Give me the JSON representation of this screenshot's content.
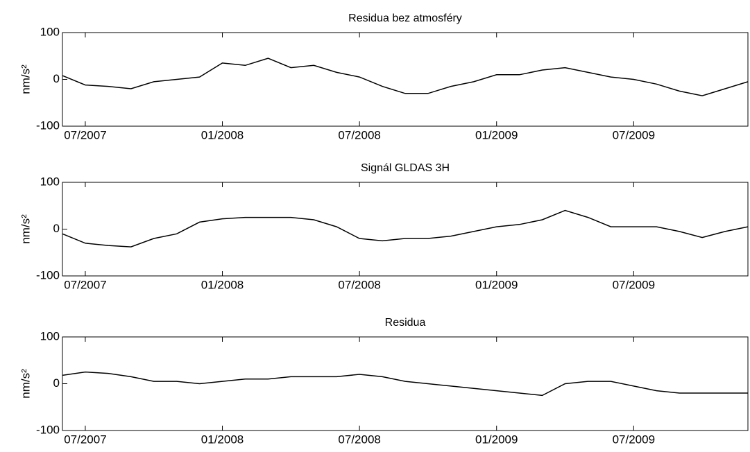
{
  "chart_data": [
    {
      "type": "line",
      "title": "Residua bez atmosféry",
      "ylabel": "nm/s²",
      "color": "#000000",
      "x": [
        "2007-06",
        "2007-07",
        "2007-08",
        "2007-09",
        "2007-10",
        "2007-11",
        "2007-12",
        "2008-01",
        "2008-02",
        "2008-03",
        "2008-04",
        "2008-05",
        "2008-06",
        "2008-07",
        "2008-08",
        "2008-09",
        "2008-10",
        "2008-11",
        "2008-12",
        "2009-01",
        "2009-02",
        "2009-03",
        "2009-04",
        "2009-05",
        "2009-06",
        "2009-07",
        "2009-08",
        "2009-09",
        "2009-10",
        "2009-11",
        "2009-12"
      ],
      "values": [
        8,
        -12,
        -15,
        -20,
        -5,
        0,
        5,
        35,
        30,
        45,
        25,
        30,
        15,
        5,
        -15,
        -30,
        -30,
        -15,
        -5,
        10,
        10,
        20,
        25,
        15,
        5,
        0,
        -10,
        -25,
        -35,
        -20,
        -5
      ],
      "xlim": [
        "2007-06",
        "2009-12"
      ],
      "xticks": [
        {
          "value": "2007-07",
          "label": "07/2007"
        },
        {
          "value": "2008-01",
          "label": "01/2008"
        },
        {
          "value": "2008-07",
          "label": "07/2008"
        },
        {
          "value": "2009-01",
          "label": "01/2009"
        },
        {
          "value": "2009-07",
          "label": "07/2009"
        }
      ],
      "ylim": [
        -100,
        100
      ],
      "yticks": [
        -100,
        0,
        100
      ]
    },
    {
      "type": "line",
      "title": "Signál GLDAS 3H",
      "ylabel": "nm/s²",
      "color": "#000000",
      "x": [
        "2007-06",
        "2007-07",
        "2007-08",
        "2007-09",
        "2007-10",
        "2007-11",
        "2007-12",
        "2008-01",
        "2008-02",
        "2008-03",
        "2008-04",
        "2008-05",
        "2008-06",
        "2008-07",
        "2008-08",
        "2008-09",
        "2008-10",
        "2008-11",
        "2008-12",
        "2009-01",
        "2009-02",
        "2009-03",
        "2009-04",
        "2009-05",
        "2009-06",
        "2009-07",
        "2009-08",
        "2009-09",
        "2009-10",
        "2009-11",
        "2009-12"
      ],
      "values": [
        -10,
        -30,
        -35,
        -38,
        -20,
        -10,
        15,
        22,
        25,
        25,
        25,
        20,
        5,
        -20,
        -25,
        -20,
        -20,
        -15,
        -5,
        5,
        10,
        20,
        40,
        25,
        5,
        5,
        5,
        -5,
        -18,
        -5,
        5
      ],
      "xlim": [
        "2007-06",
        "2009-12"
      ],
      "xticks": [
        {
          "value": "2007-07",
          "label": "07/2007"
        },
        {
          "value": "2008-01",
          "label": "01/2008"
        },
        {
          "value": "2008-07",
          "label": "07/2008"
        },
        {
          "value": "2009-01",
          "label": "01/2009"
        },
        {
          "value": "2009-07",
          "label": "07/2009"
        }
      ],
      "ylim": [
        -100,
        100
      ],
      "yticks": [
        -100,
        0,
        100
      ]
    },
    {
      "type": "line",
      "title": "Residua",
      "ylabel": "nm/s²",
      "color": "#000000",
      "x": [
        "2007-06",
        "2007-07",
        "2007-08",
        "2007-09",
        "2007-10",
        "2007-11",
        "2007-12",
        "2008-01",
        "2008-02",
        "2008-03",
        "2008-04",
        "2008-05",
        "2008-06",
        "2008-07",
        "2008-08",
        "2008-09",
        "2008-10",
        "2008-11",
        "2008-12",
        "2009-01",
        "2009-02",
        "2009-03",
        "2009-04",
        "2009-05",
        "2009-06",
        "2009-07",
        "2009-08",
        "2009-09",
        "2009-10",
        "2009-11",
        "2009-12"
      ],
      "values": [
        18,
        25,
        22,
        15,
        5,
        5,
        0,
        5,
        10,
        10,
        15,
        15,
        15,
        20,
        15,
        5,
        0,
        -5,
        -10,
        -15,
        -20,
        -25,
        0,
        5,
        5,
        -5,
        -15,
        -20,
        -20,
        -20,
        -20
      ],
      "xlim": [
        "2007-06",
        "2009-12"
      ],
      "xticks": [
        {
          "value": "2007-07",
          "label": "07/2007"
        },
        {
          "value": "2008-01",
          "label": "01/2008"
        },
        {
          "value": "2008-07",
          "label": "07/2008"
        },
        {
          "value": "2009-01",
          "label": "01/2009"
        },
        {
          "value": "2009-07",
          "label": "07/2009"
        }
      ],
      "ylim": [
        -100,
        100
      ],
      "yticks": [
        -100,
        0,
        100
      ]
    }
  ]
}
